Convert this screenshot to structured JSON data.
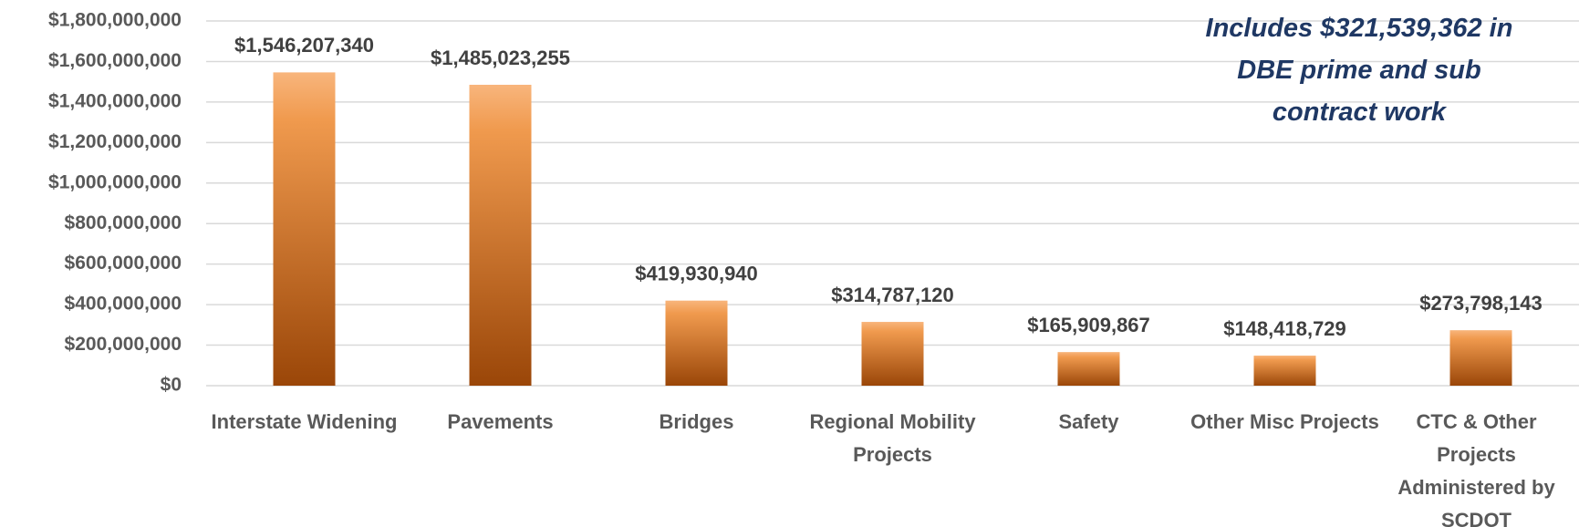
{
  "chart_data": {
    "type": "bar",
    "annotation": "Includes $321,539,362  in DBE prime and sub contract work",
    "categories": [
      "Interstate Widening",
      "Pavements",
      "Bridges",
      "Regional Mobility Projects",
      "Safety",
      "Other Misc Projects",
      "CTC & Other Projects Administered by SCDOT"
    ],
    "values": [
      1546207340,
      1485023255,
      419930940,
      314787120,
      165909867,
      148418729,
      273798143
    ],
    "value_labels": [
      "$1,546,207,340",
      "$1,485,023,255",
      "$419,930,940",
      "$314,787,120",
      "$165,909,867",
      "$148,418,729",
      "$273,798,143"
    ],
    "color": "#c86a1e",
    "ylim": [
      0,
      1800000000
    ],
    "yticks": [
      {
        "value": 0,
        "label": "$0"
      },
      {
        "value": 200000000,
        "label": "$200,000,000"
      },
      {
        "value": 400000000,
        "label": "$400,000,000"
      },
      {
        "value": 600000000,
        "label": "$600,000,000"
      },
      {
        "value": 800000000,
        "label": "$800,000,000"
      },
      {
        "value": 1000000000,
        "label": "$1,000,000,000"
      },
      {
        "value": 1200000000,
        "label": "$1,200,000,000"
      },
      {
        "value": 1400000000,
        "label": "$1,400,000,000"
      },
      {
        "value": 1600000000,
        "label": "$1,600,000,000"
      },
      {
        "value": 1800000000,
        "label": "$1,800,000,000"
      }
    ],
    "grid": true
  }
}
